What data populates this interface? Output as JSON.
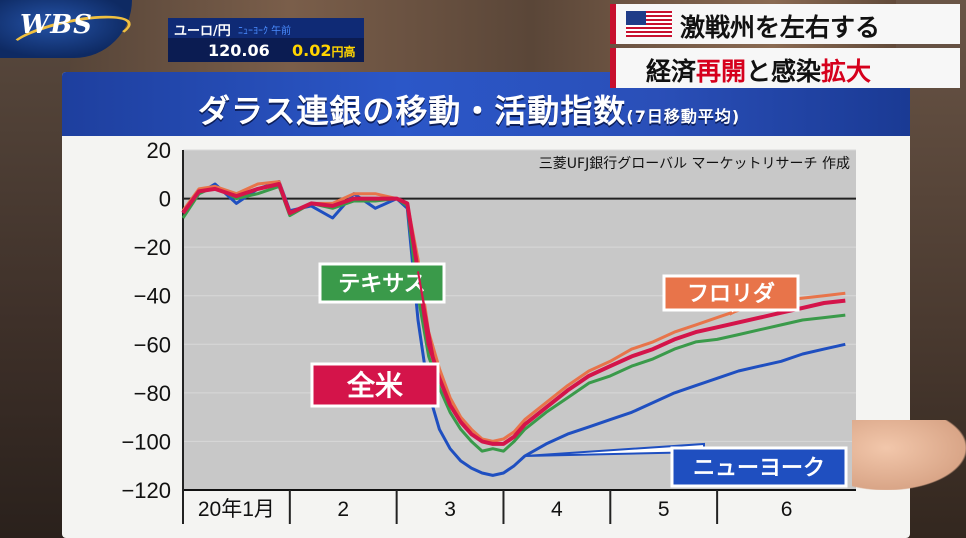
{
  "broadcast": {
    "logo_text": "WBS",
    "ticker": {
      "label": "ユーロ/円",
      "note": "ﾆｭｰﾖｰｸ 午前",
      "rate": "120.06",
      "change": "0.02",
      "change_unit": "円高"
    },
    "headline": {
      "line1": "激戦州を左右する",
      "line2_parts": [
        "経済",
        "再開",
        "と感染",
        "拡大"
      ]
    }
  },
  "colors": {
    "background_panel": "#c8c8c8",
    "title_band": "#2a4fb8",
    "series_texas": "#3a9a4a",
    "series_florida": "#e8744a",
    "series_us": "#d4144a",
    "series_newyork": "#1f4fc0"
  },
  "chart_data": {
    "type": "line",
    "title": "ダラス連銀の移動・活動指数",
    "subtitle": "(7日移動平均)",
    "source": "三菱UFJ銀行グローバル マーケットリサーチ 作成",
    "ylim": [
      -120,
      20
    ],
    "yticks": [
      "20",
      "0",
      "−20",
      "−40",
      "−60",
      "−80",
      "−100",
      "−120"
    ],
    "ytick_values": [
      20,
      0,
      -20,
      -40,
      -60,
      -80,
      -100,
      -120
    ],
    "xlim": [
      0,
      6.3
    ],
    "categories": [
      "20年1月",
      "2",
      "3",
      "4",
      "5",
      "6"
    ],
    "category_starts": [
      0,
      1,
      2,
      3,
      4,
      5
    ],
    "grid": true,
    "x": [
      0,
      0.15,
      0.3,
      0.5,
      0.7,
      0.9,
      1.0,
      1.2,
      1.4,
      1.6,
      1.8,
      2.0,
      2.1,
      2.2,
      2.3,
      2.4,
      2.5,
      2.6,
      2.7,
      2.8,
      2.9,
      3.0,
      3.1,
      3.2,
      3.4,
      3.6,
      3.8,
      4.0,
      4.2,
      4.4,
      4.6,
      4.8,
      5.0,
      5.2,
      5.4,
      5.6,
      5.8,
      6.0,
      6.2
    ],
    "series": [
      {
        "name": "テキサス",
        "values": [
          -8,
          2,
          5,
          0,
          2,
          5,
          -7,
          -2,
          -4,
          -1,
          -1,
          0,
          -3,
          -40,
          -65,
          -78,
          -88,
          -95,
          -100,
          -104,
          -103,
          -104,
          -100,
          -95,
          -88,
          -82,
          -76,
          -73,
          -69,
          -66,
          -62,
          -59,
          -58,
          -56,
          -54,
          -52,
          -50,
          -49,
          -48
        ]
      },
      {
        "name": "フロリダ",
        "values": [
          -5,
          4,
          5,
          2,
          6,
          7,
          -6,
          -2,
          -2,
          2,
          2,
          0,
          -2,
          -25,
          -55,
          -70,
          -82,
          -90,
          -95,
          -99,
          -100,
          -99,
          -96,
          -91,
          -84,
          -77,
          -71,
          -67,
          -62,
          -59,
          -55,
          -52,
          -49,
          -46,
          -44,
          -42,
          -41,
          -40,
          -39
        ]
      },
      {
        "name": "全米",
        "values": [
          -6,
          3,
          4,
          1,
          4,
          6,
          -6,
          -2,
          -3,
          0,
          0,
          0,
          -2,
          -30,
          -60,
          -74,
          -85,
          -92,
          -97,
          -100,
          -101,
          -101,
          -98,
          -93,
          -86,
          -79,
          -73,
          -69,
          -65,
          -62,
          -58,
          -55,
          -53,
          -51,
          -49,
          -47,
          -45,
          -43,
          -42
        ]
      },
      {
        "name": "ニューヨーク",
        "values": [
          -6,
          2,
          6,
          -2,
          4,
          7,
          -5,
          -3,
          -8,
          2,
          -4,
          0,
          -4,
          -50,
          -80,
          -95,
          -103,
          -108,
          -111,
          -113,
          -114,
          -113,
          -110,
          -106,
          -101,
          -97,
          -94,
          -91,
          -88,
          -84,
          -80,
          -77,
          -74,
          -71,
          -69,
          -67,
          -64,
          -62,
          -60
        ]
      }
    ]
  }
}
